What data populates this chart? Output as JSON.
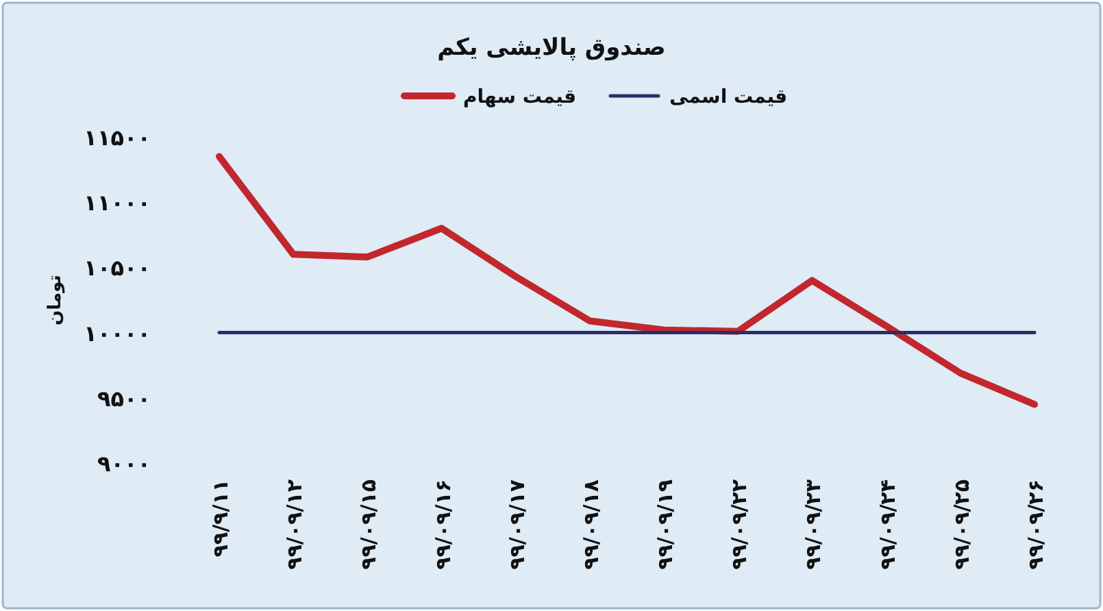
{
  "chart_data": {
    "type": "line",
    "title": "صندوق پالایشی یکم",
    "ylabel": "تومان",
    "categories": [
      "۹۹/۹/۱۱",
      "۹۹/۰۹/۱۲",
      "۹۹/۰۹/۱۵",
      "۹۹/۰۹/۱۶",
      "۹۹/۰۹/۱۷",
      "۹۹/۰۹/۱۸",
      "۹۹/۰۹/۱۹",
      "۹۹/۰۹/۲۲",
      "۹۹/۰۹/۲۳",
      "۹۹/۰۹/۲۴",
      "۹۹/۰۹/۲۵",
      "۹۹/۰۹/۲۶"
    ],
    "series": [
      {
        "name": "قیمت سهام",
        "color": "#c1272d",
        "values": [
          11350,
          10600,
          10580,
          10800,
          10430,
          10090,
          10020,
          10010,
          10400,
          10050,
          9690,
          9450
        ]
      },
      {
        "name": "قیمت اسمی",
        "color": "#2b2d6b",
        "values": [
          10000,
          10000,
          10000,
          10000,
          10000,
          10000,
          10000,
          10000,
          10000,
          10000,
          10000,
          10000
        ]
      }
    ],
    "ylim": [
      9000,
      11500
    ],
    "yticks": [
      {
        "value": 9000,
        "label": "۹۰۰۰"
      },
      {
        "value": 9500,
        "label": "۹۵۰۰"
      },
      {
        "value": 10000,
        "label": "۱۰۰۰۰"
      },
      {
        "value": 10500,
        "label": "۱۰۵۰۰"
      },
      {
        "value": 11000,
        "label": "۱۱۰۰۰"
      },
      {
        "value": 11500,
        "label": "۱۱۵۰۰"
      }
    ],
    "grid": false,
    "legend": "top",
    "marker": "none",
    "line_style": "solid"
  }
}
